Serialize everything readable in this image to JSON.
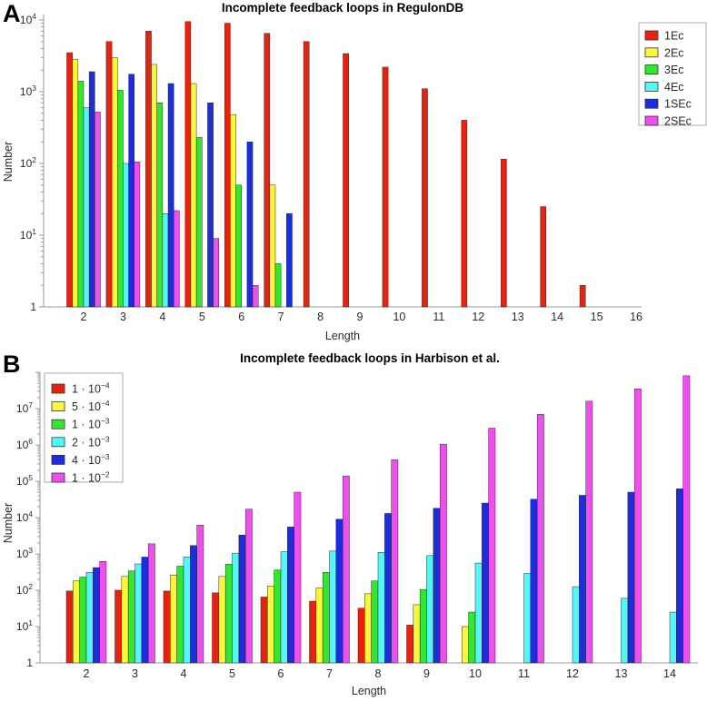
{
  "chart_data": [
    {
      "panel_letter": "A",
      "type": "bar",
      "title": "Incomplete feedback loops in RegulonDB",
      "xlabel": "Length",
      "ylabel": "Number",
      "yscale": "log",
      "ylim": [
        1,
        10000
      ],
      "ytick_exponents": [
        0,
        1,
        2,
        3,
        4
      ],
      "grid": false,
      "legend_position": "outside top-right",
      "categories": [
        2,
        3,
        4,
        5,
        6,
        7,
        8,
        9,
        10,
        11,
        12,
        13,
        14,
        15,
        16
      ],
      "series": [
        {
          "name": "1Ec",
          "legend_base": "1Ec",
          "legend_exp": "",
          "color": "#e8220e",
          "values": [
            3500,
            5000,
            7000,
            9500,
            9000,
            6500,
            5000,
            3400,
            2200,
            1100,
            400,
            115,
            25,
            2,
            0
          ]
        },
        {
          "name": "2Ec",
          "legend_base": "2Ec",
          "legend_exp": "",
          "color": "#fdf63a",
          "values": [
            2800,
            3000,
            2400,
            1300,
            480,
            50,
            0,
            0,
            0,
            0,
            0,
            0,
            0,
            0,
            0
          ]
        },
        {
          "name": "3Ec",
          "legend_base": "3Ec",
          "legend_exp": "",
          "color": "#33e62e",
          "values": [
            1400,
            1050,
            700,
            230,
            50,
            4,
            0,
            0,
            0,
            0,
            0,
            0,
            0,
            0,
            0
          ]
        },
        {
          "name": "4Ec",
          "legend_base": "4Ec",
          "legend_exp": "",
          "color": "#55f6f6",
          "values": [
            600,
            100,
            20,
            0,
            0,
            0,
            0,
            0,
            0,
            0,
            0,
            0,
            0,
            0,
            0
          ]
        },
        {
          "name": "1SEc",
          "legend_base": "1SEc",
          "legend_exp": "",
          "color": "#1c2dd9",
          "values": [
            1900,
            1750,
            1300,
            700,
            200,
            20,
            0,
            0,
            0,
            0,
            0,
            0,
            0,
            0,
            0
          ]
        },
        {
          "name": "2SEc",
          "legend_base": "2SEc",
          "legend_exp": "",
          "color": "#ee4fee",
          "values": [
            520,
            105,
            22,
            9,
            2,
            0,
            0,
            0,
            0,
            0,
            0,
            0,
            0,
            0,
            0
          ]
        }
      ]
    },
    {
      "panel_letter": "B",
      "type": "bar",
      "title": "Incomplete feedback loops in Harbison et al.",
      "xlabel": "Length",
      "ylabel": "Number",
      "yscale": "log",
      "ylim": [
        1,
        100000000
      ],
      "ytick_exponents": [
        0,
        1,
        2,
        3,
        4,
        5,
        6,
        7
      ],
      "grid": false,
      "legend_position": "inside top-left",
      "categories": [
        2,
        3,
        4,
        5,
        6,
        7,
        8,
        9,
        10,
        11,
        12,
        13,
        14
      ],
      "series": [
        {
          "name": "1e-4",
          "legend_base": "1 · 10",
          "legend_exp": "−4",
          "color": "#e8220e",
          "values": [
            95,
            100,
            95,
            85,
            65,
            50,
            32,
            11,
            0,
            0,
            0,
            0,
            0
          ]
        },
        {
          "name": "5e-4",
          "legend_base": "5 · 10",
          "legend_exp": "−4",
          "color": "#fdf63a",
          "values": [
            180,
            240,
            260,
            240,
            130,
            115,
            80,
            40,
            10,
            0,
            0,
            0,
            0
          ]
        },
        {
          "name": "1e-3",
          "legend_base": "1 · 10",
          "legend_exp": "−3",
          "color": "#33e62e",
          "values": [
            230,
            340,
            460,
            520,
            360,
            310,
            180,
            105,
            25,
            0,
            0,
            0,
            0
          ]
        },
        {
          "name": "2e-3",
          "legend_base": "2 · 10",
          "legend_exp": "−3",
          "color": "#55f6f6",
          "values": [
            310,
            530,
            820,
            1050,
            1150,
            1200,
            1100,
            900,
            560,
            290,
            125,
            60,
            25
          ]
        },
        {
          "name": "4e-3",
          "legend_base": "4 · 10",
          "legend_exp": "−3",
          "color": "#1c2dd9",
          "values": [
            420,
            820,
            1700,
            3300,
            5500,
            9000,
            13000,
            18000,
            25000,
            32000,
            41000,
            50000,
            62000
          ]
        },
        {
          "name": "1e-2",
          "legend_base": "1 · 10",
          "legend_exp": "−2",
          "color": "#ee4fee",
          "values": [
            620,
            1900,
            6200,
            17000,
            50000,
            140000,
            390000,
            1050000,
            2900000,
            7000000,
            16000000,
            35000000,
            80000000
          ]
        }
      ]
    }
  ]
}
